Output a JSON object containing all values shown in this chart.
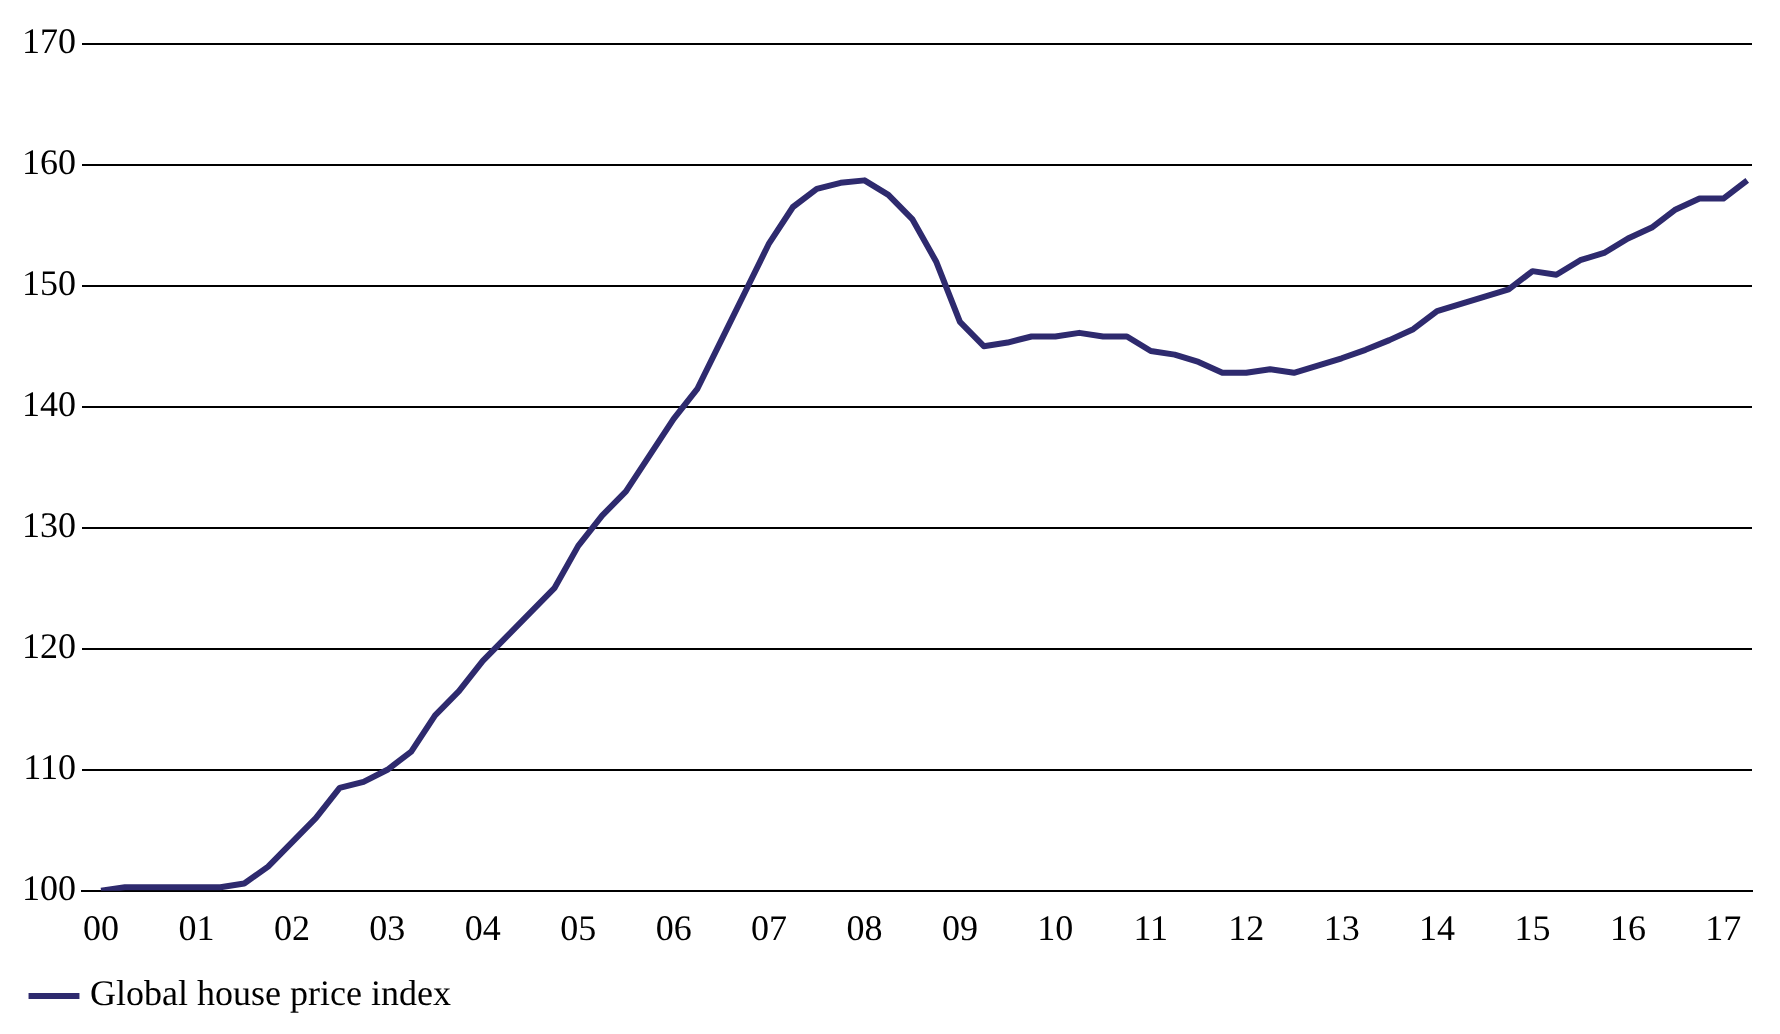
{
  "chart_data": {
    "type": "line",
    "xlim": [
      1999.8,
      2017.3
    ],
    "ylim": [
      100,
      170
    ],
    "xticks": [
      {
        "value": 2000,
        "label": "00"
      },
      {
        "value": 2001,
        "label": "01"
      },
      {
        "value": 2002,
        "label": "02"
      },
      {
        "value": 2003,
        "label": "03"
      },
      {
        "value": 2004,
        "label": "04"
      },
      {
        "value": 2005,
        "label": "05"
      },
      {
        "value": 2006,
        "label": "06"
      },
      {
        "value": 2007,
        "label": "07"
      },
      {
        "value": 2008,
        "label": "08"
      },
      {
        "value": 2009,
        "label": "09"
      },
      {
        "value": 2010,
        "label": "10"
      },
      {
        "value": 2011,
        "label": "11"
      },
      {
        "value": 2012,
        "label": "12"
      },
      {
        "value": 2013,
        "label": "13"
      },
      {
        "value": 2014,
        "label": "14"
      },
      {
        "value": 2015,
        "label": "15"
      },
      {
        "value": 2016,
        "label": "16"
      },
      {
        "value": 2017,
        "label": "17"
      }
    ],
    "yticks": [
      100,
      110,
      120,
      130,
      140,
      150,
      160,
      170
    ],
    "x": [
      2000,
      2000.25,
      2000.5,
      2000.75,
      2001,
      2001.25,
      2001.5,
      2001.75,
      2002,
      2002.25,
      2002.5,
      2002.75,
      2003,
      2003.25,
      2003.5,
      2003.75,
      2004,
      2004.25,
      2004.5,
      2004.75,
      2005,
      2005.25,
      2005.5,
      2005.75,
      2006,
      2006.25,
      2006.5,
      2006.75,
      2007,
      2007.25,
      2007.5,
      2007.75,
      2008,
      2008.25,
      2008.5,
      2008.75,
      2009,
      2009.25,
      2009.5,
      2009.75,
      2010,
      2010.25,
      2010.5,
      2010.75,
      2011,
      2011.25,
      2011.5,
      2011.75,
      2012,
      2012.25,
      2012.5,
      2012.75,
      2013,
      2013.25,
      2013.5,
      2013.75,
      2014,
      2014.25,
      2014.5,
      2014.75,
      2015,
      2015.25,
      2015.5,
      2015.75,
      2016,
      2016.25,
      2016.5,
      2016.75,
      2017,
      2017.25
    ],
    "series": [
      {
        "name": "Global house price index",
        "color": "#2e2a6e",
        "values": [
          100,
          100.3,
          100.3,
          100.3,
          100.3,
          100.3,
          100.6,
          102,
          104,
          106,
          108.5,
          109,
          110,
          111.5,
          114.5,
          116.5,
          119,
          121,
          123,
          125,
          128.5,
          131,
          133,
          136,
          139,
          141.5,
          145.5,
          149.5,
          153.5,
          156.5,
          158,
          158.5,
          158.7,
          157.5,
          155.5,
          152,
          147,
          145,
          145.3,
          145.8,
          145.8,
          146.1,
          145.8,
          145.8,
          144.6,
          144.3,
          143.7,
          142.8,
          142.8,
          143.1,
          142.8,
          143.4,
          144,
          144.7,
          145.5,
          146.4,
          147.9,
          148.5,
          149.1,
          149.7,
          151.2,
          150.9,
          152.1,
          152.7,
          153.9,
          154.8,
          156.3,
          157.2,
          157.2,
          158.7
        ]
      }
    ],
    "grid": "y",
    "legend": "bottom left",
    "marker": "none",
    "line_style": "solid"
  }
}
